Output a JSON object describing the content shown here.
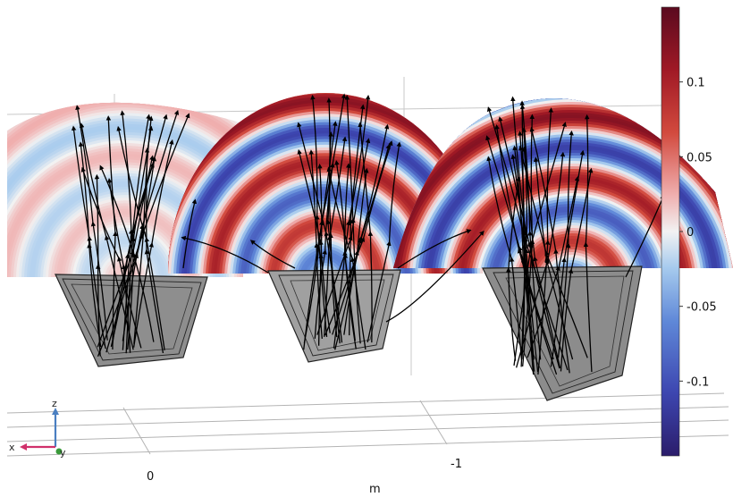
{
  "chart_data": {
    "type": "3d-surface-streamlines",
    "x_axis": {
      "unit_label": "m",
      "ticks": [
        "0",
        "-1"
      ]
    },
    "triad": {
      "x": "x",
      "y": "y",
      "z": "z"
    },
    "colorbar": {
      "range": [
        -0.15,
        0.15
      ],
      "ticks": [
        {
          "value": 0.1,
          "label": "0.1"
        },
        {
          "value": 0.05,
          "label": "0.05"
        },
        {
          "value": 0,
          "label": "0"
        },
        {
          "value": -0.05,
          "label": "-0.05"
        },
        {
          "value": -0.1,
          "label": "-0.1"
        }
      ],
      "colors": [
        "#2b1d6b",
        "#3d46b0",
        "#5f88d8",
        "#a7cbee",
        "#f2f2f2",
        "#f0b0b0",
        "#d24a3e",
        "#a01925",
        "#5a0a1f"
      ]
    },
    "models": [
      {
        "position": "left",
        "wave_amplitude": 0.04
      },
      {
        "position": "center",
        "wave_amplitude": 0.13
      },
      {
        "position": "right",
        "wave_amplitude": 0.14
      }
    ]
  }
}
